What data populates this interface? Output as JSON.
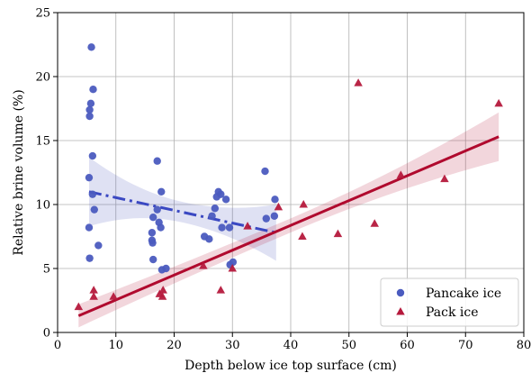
{
  "chart_data": {
    "type": "scatter",
    "xlabel": "Depth below ice top surface (cm)",
    "ylabel": "Relative brine volume (%)",
    "xlim": [
      0,
      80
    ],
    "ylim": [
      0,
      25
    ],
    "xticks": [
      0,
      10,
      20,
      30,
      40,
      50,
      60,
      70,
      80
    ],
    "yticks": [
      0,
      5,
      10,
      15,
      20,
      25
    ],
    "grid": true,
    "legend_position": "lower-right",
    "series": [
      {
        "name": "Pancake ice",
        "marker": "circle",
        "color": "#4b5bbf",
        "points": [
          [
            5.8,
            22.3
          ],
          [
            6.1,
            19.0
          ],
          [
            5.7,
            17.9
          ],
          [
            5.5,
            17.4
          ],
          [
            5.5,
            16.9
          ],
          [
            6.0,
            13.8
          ],
          [
            5.4,
            12.1
          ],
          [
            6.0,
            10.8
          ],
          [
            6.3,
            9.6
          ],
          [
            5.4,
            8.2
          ],
          [
            7.0,
            6.8
          ],
          [
            5.5,
            5.8
          ],
          [
            17.1,
            13.4
          ],
          [
            17.8,
            11.0
          ],
          [
            16.4,
            9.0
          ],
          [
            17.1,
            9.6
          ],
          [
            17.4,
            8.6
          ],
          [
            17.7,
            8.2
          ],
          [
            16.2,
            7.8
          ],
          [
            16.2,
            7.2
          ],
          [
            16.3,
            7.0
          ],
          [
            16.4,
            5.7
          ],
          [
            17.9,
            4.9
          ],
          [
            18.6,
            5.0
          ],
          [
            27.6,
            11.0
          ],
          [
            28.0,
            10.8
          ],
          [
            27.3,
            10.6
          ],
          [
            28.9,
            10.4
          ],
          [
            27.0,
            9.7
          ],
          [
            26.5,
            9.1
          ],
          [
            28.2,
            8.2
          ],
          [
            29.5,
            8.2
          ],
          [
            25.2,
            7.5
          ],
          [
            26.0,
            7.3
          ],
          [
            29.6,
            5.3
          ],
          [
            30.1,
            5.5
          ],
          [
            35.6,
            12.6
          ],
          [
            37.3,
            10.4
          ],
          [
            37.2,
            9.1
          ],
          [
            35.8,
            8.9
          ]
        ],
        "trend_line": {
          "x": [
            5.4,
            37.5
          ],
          "y": [
            11.0,
            7.8
          ],
          "style": "dash-dot"
        }
      },
      {
        "name": "Pack ice",
        "marker": "triangle",
        "color": "#b5193c",
        "points": [
          [
            3.6,
            2.0
          ],
          [
            6.2,
            3.3
          ],
          [
            6.2,
            2.8
          ],
          [
            9.6,
            2.8
          ],
          [
            17.5,
            3.0
          ],
          [
            18.1,
            3.3
          ],
          [
            18.0,
            2.8
          ],
          [
            25.0,
            5.2
          ],
          [
            28.0,
            3.3
          ],
          [
            30.0,
            5.0
          ],
          [
            32.6,
            8.3
          ],
          [
            37.9,
            9.8
          ],
          [
            42.2,
            10.0
          ],
          [
            42.0,
            7.5
          ],
          [
            48.1,
            7.7
          ],
          [
            51.6,
            19.5
          ],
          [
            54.4,
            8.5
          ],
          [
            58.9,
            12.3
          ],
          [
            66.4,
            12.0
          ],
          [
            75.7,
            17.9
          ]
        ],
        "trend_line": {
          "x": [
            3.6,
            75.7
          ],
          "y": [
            1.3,
            15.3
          ],
          "style": "solid"
        }
      }
    ]
  }
}
